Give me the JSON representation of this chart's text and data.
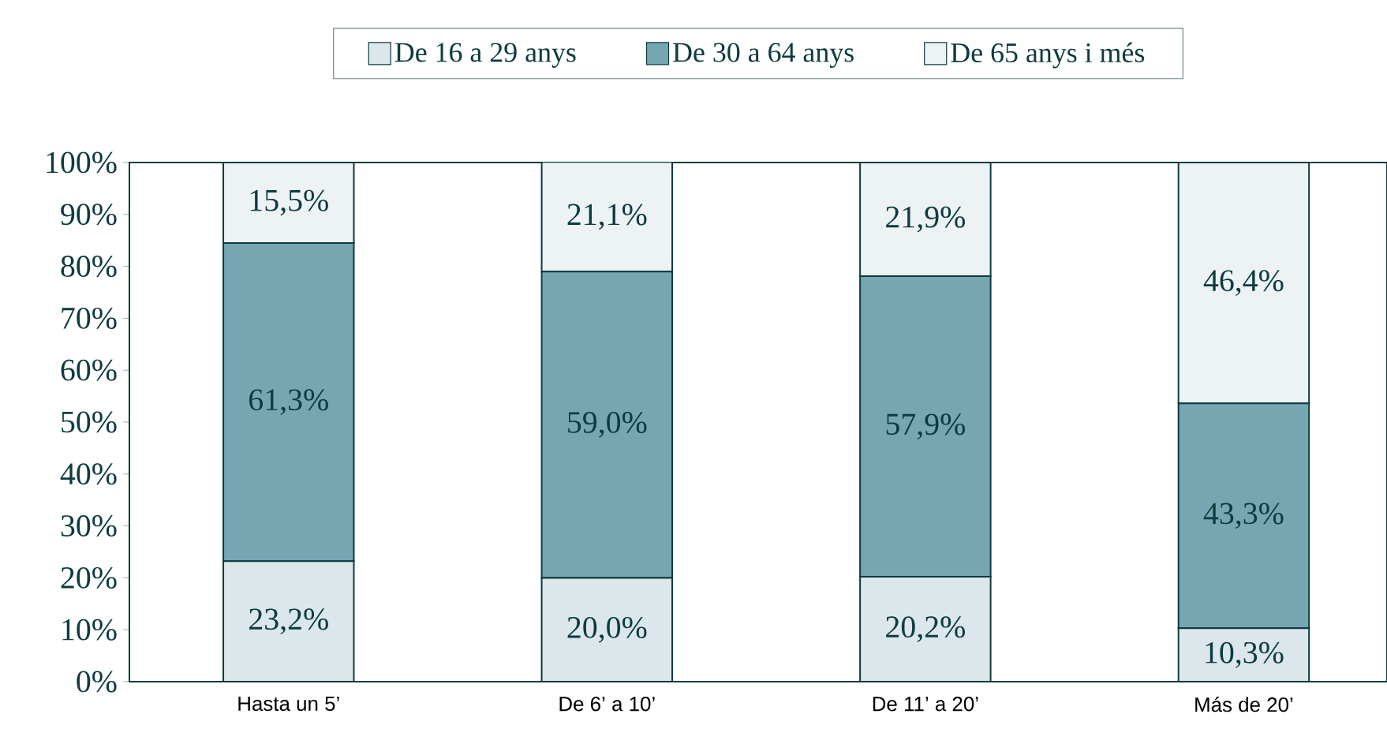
{
  "chart_data": {
    "type": "bar",
    "stacked": true,
    "legend": "top",
    "categories": [
      "Hasta un 5’",
      "De 6’ a 10’",
      "De 11’ a 20’",
      "Más de 20’"
    ],
    "series": [
      {
        "name": "De 16 a 29 anys",
        "color": "#dbe7ea",
        "values": [
          23.2,
          20.0,
          20.2,
          10.3
        ],
        "value_labels": [
          "23,2%",
          "20,0%",
          "20,2%",
          "10,3%"
        ]
      },
      {
        "name": "De 30 a 64 anys",
        "color": "#76a6b2",
        "values": [
          61.3,
          59.0,
          57.9,
          43.3
        ],
        "value_labels": [
          "61,3%",
          "59,0%",
          "57,9%",
          "43,3%"
        ]
      },
      {
        "name": "De 65 anys i més",
        "color": "#edf3f5",
        "values": [
          15.5,
          21.1,
          21.9,
          46.4
        ],
        "value_labels": [
          "15,5%",
          "21,1%",
          "21,9%",
          "46,4%"
        ]
      }
    ],
    "ylim": [
      0,
      100
    ],
    "yticks": [
      {
        "value": 0,
        "label": "0%"
      },
      {
        "value": 10,
        "label": "10%"
      },
      {
        "value": 20,
        "label": "20%"
      },
      {
        "value": 30,
        "label": "30%"
      },
      {
        "value": 40,
        "label": "40%"
      },
      {
        "value": 50,
        "label": "50%"
      },
      {
        "value": 60,
        "label": "60%"
      },
      {
        "value": 70,
        "label": "70%"
      },
      {
        "value": 80,
        "label": "80%"
      },
      {
        "value": 90,
        "label": "90%"
      },
      {
        "value": 100,
        "label": "100%"
      }
    ]
  }
}
